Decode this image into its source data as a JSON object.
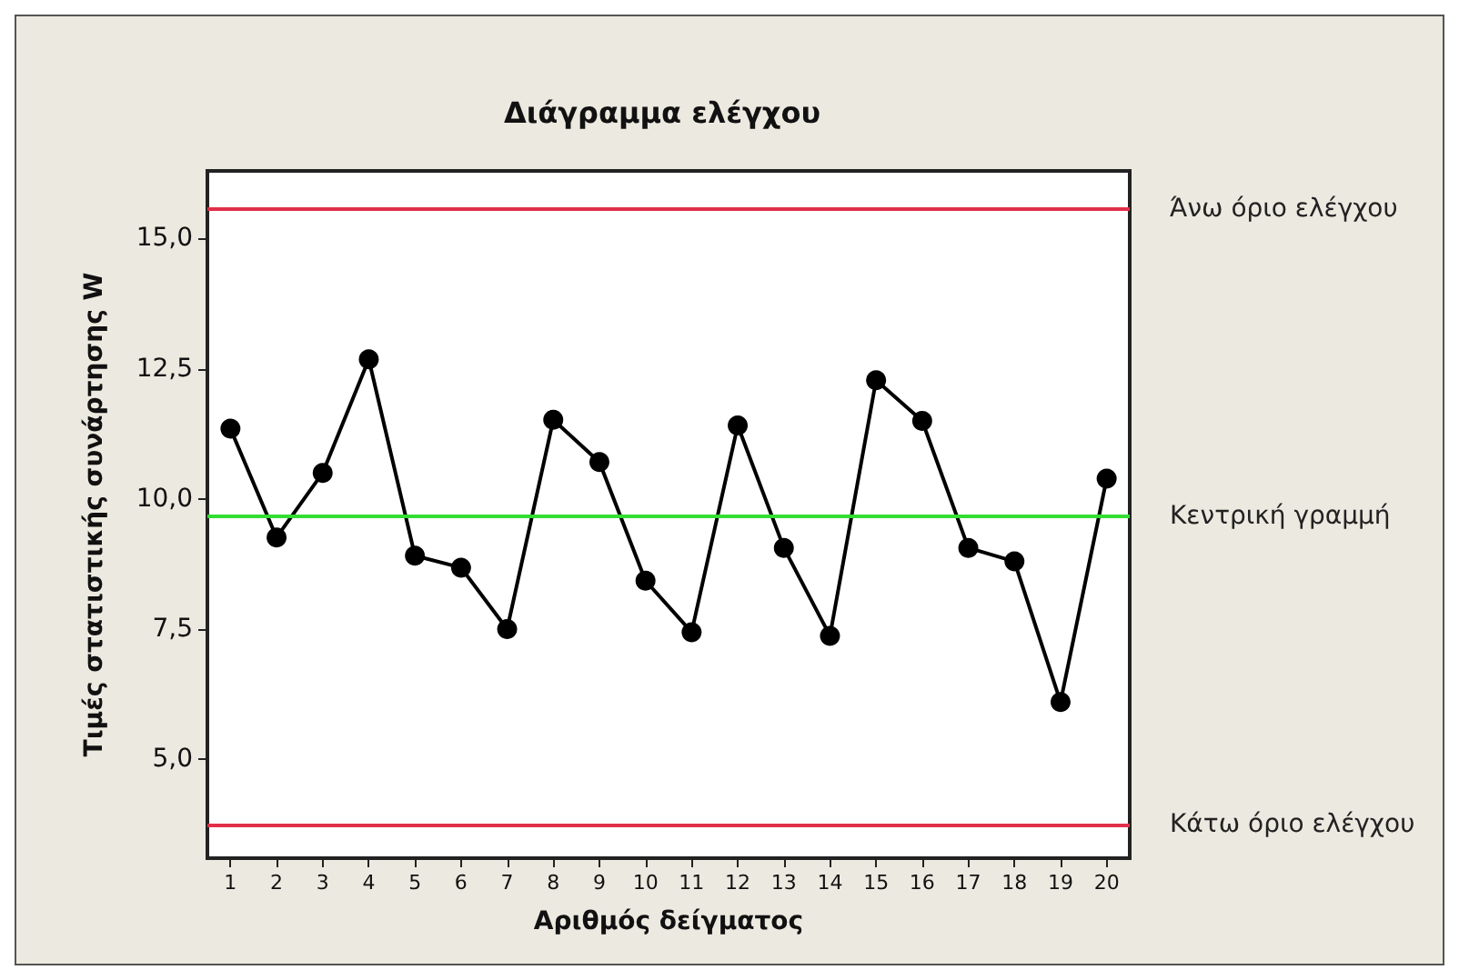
{
  "chart_data": {
    "type": "line",
    "title": "Διάγραμμα ελέγχου",
    "xlabel": "Αριθμός δείγματος",
    "ylabel": "Τιμές στατιστικής συνάρτησης W",
    "x": [
      1,
      2,
      3,
      4,
      5,
      6,
      7,
      8,
      9,
      10,
      11,
      12,
      13,
      14,
      15,
      16,
      17,
      18,
      19,
      20
    ],
    "series": [
      {
        "color": "#000000",
        "values": [
          11.35,
          9.26,
          10.5,
          12.68,
          8.91,
          8.68,
          7.5,
          11.52,
          10.71,
          8.43,
          7.44,
          11.41,
          9.06,
          7.37,
          12.28,
          11.5,
          9.06,
          8.8,
          6.1,
          10.39
        ]
      }
    ],
    "xlim": [
      0.5,
      20.5
    ],
    "xticks": [
      1,
      2,
      3,
      4,
      5,
      6,
      7,
      8,
      9,
      10,
      11,
      12,
      13,
      14,
      15,
      16,
      17,
      18,
      19,
      20
    ],
    "ylim": [
      3.1,
      16.3
    ],
    "yticks": [
      {
        "value": 5,
        "label": "5,0"
      },
      {
        "value": 7.5,
        "label": "7,5"
      },
      {
        "value": 10,
        "label": "10,0"
      },
      {
        "value": 12.5,
        "label": "12,5"
      },
      {
        "value": 15,
        "label": "15,0"
      }
    ],
    "ref_lines": [
      {
        "axis": "y",
        "value": 15.56,
        "label": "Άνω όριο ελέγχου",
        "color": "#e0304a"
      },
      {
        "axis": "y",
        "value": 9.67,
        "label": "Κεντρική γραμμή",
        "color": "#33dd33"
      },
      {
        "axis": "y",
        "value": 3.75,
        "label": "Κάτω όριο ελέγχου",
        "color": "#e0304a"
      }
    ],
    "grid": false,
    "marker": "circle",
    "line_style": "solid"
  }
}
